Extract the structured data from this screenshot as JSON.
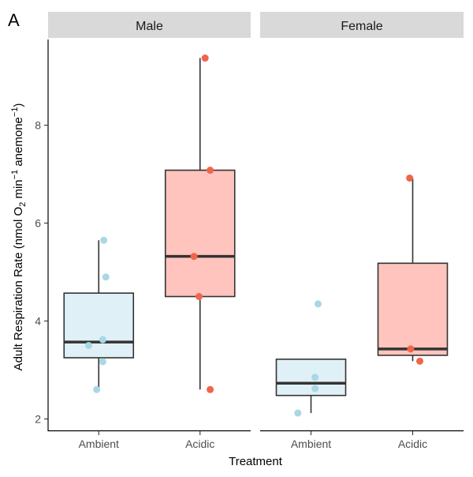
{
  "panel_tag": "A",
  "chart_data": {
    "type": "box",
    "facets": [
      "Male",
      "Female"
    ],
    "categories": [
      "Ambient",
      "Acidic"
    ],
    "xlabel": "Treatment",
    "ylabel": {
      "main": "Adult Respiration Rate (nmol O",
      "sub": "2",
      "mid": " min",
      "sup1": "−1",
      "tail": " anemone",
      "sup2": "−1",
      "close": ")"
    },
    "ylim": [
      1.75,
      9.75
    ],
    "yticks": [
      2,
      4,
      6,
      8
    ],
    "colors": {
      "Ambient": {
        "fill": "#dff0f6",
        "point": "#a9d7e6"
      },
      "Acidic": {
        "fill": "#ffc4bd",
        "point": "#f0654a"
      }
    },
    "boxes": [
      {
        "facet": "Male",
        "category": "Ambient",
        "whisker_low": 2.6,
        "q1": 3.25,
        "median": 3.57,
        "q3": 4.57,
        "whisker_high": 5.65,
        "points": [
          2.6,
          3.17,
          3.5,
          3.62,
          4.9,
          5.65
        ],
        "jitter": [
          -0.02,
          0.04,
          -0.1,
          0.04,
          0.07,
          0.05
        ]
      },
      {
        "facet": "Male",
        "category": "Acidic",
        "whisker_low": 2.6,
        "q1": 4.5,
        "median": 5.32,
        "q3": 7.08,
        "whisker_high": 9.37,
        "points": [
          2.6,
          4.5,
          5.32,
          7.08,
          9.37
        ],
        "jitter": [
          0.1,
          -0.01,
          -0.06,
          0.1,
          0.05
        ]
      },
      {
        "facet": "Female",
        "category": "Ambient",
        "whisker_low": 2.12,
        "q1": 2.48,
        "median": 2.73,
        "q3": 3.22,
        "whisker_high": 3.22,
        "points": [
          2.12,
          2.62,
          2.85,
          4.35
        ],
        "jitter": [
          -0.13,
          0.04,
          0.04,
          0.07
        ]
      },
      {
        "facet": "Female",
        "category": "Acidic",
        "whisker_low": 3.18,
        "q1": 3.3,
        "median": 3.43,
        "q3": 5.18,
        "whisker_high": 6.92,
        "points": [
          3.18,
          3.43,
          6.92
        ],
        "jitter": [
          0.07,
          -0.02,
          -0.03
        ]
      }
    ]
  }
}
